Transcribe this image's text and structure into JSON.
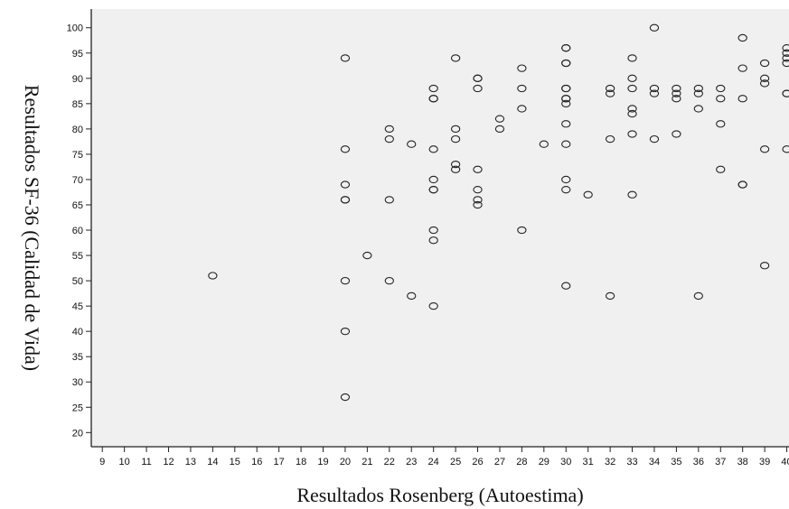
{
  "chart_data": {
    "type": "scatter",
    "xlabel": "Resultados Rosenberg (Autoestima)",
    "ylabel": "Resultados SF-36 (Calidad de Vida)",
    "xlim": [
      8.5,
      40.1
    ],
    "ylim": [
      17.2,
      103.7
    ],
    "xticks": [
      9,
      10,
      11,
      12,
      13,
      14,
      15,
      16,
      17,
      18,
      19,
      20,
      21,
      22,
      23,
      24,
      25,
      26,
      27,
      28,
      29,
      30,
      31,
      32,
      33,
      34,
      35,
      36,
      37,
      38,
      39,
      40
    ],
    "yticks": [
      20,
      25,
      30,
      35,
      40,
      45,
      50,
      55,
      60,
      65,
      70,
      75,
      80,
      85,
      90,
      95,
      100
    ],
    "grid": false,
    "legend": "none",
    "background_color": "#f0f0f0",
    "marker_color": "#222222",
    "points": [
      [
        14,
        51
      ],
      [
        20,
        94
      ],
      [
        20,
        76
      ],
      [
        20,
        69
      ],
      [
        20,
        66
      ],
      [
        20,
        66
      ],
      [
        20,
        50
      ],
      [
        20,
        40
      ],
      [
        20,
        27
      ],
      [
        21,
        55
      ],
      [
        22,
        80
      ],
      [
        22,
        78
      ],
      [
        22,
        66
      ],
      [
        22,
        50
      ],
      [
        23,
        77
      ],
      [
        23,
        47
      ],
      [
        24,
        88
      ],
      [
        24,
        86
      ],
      [
        24,
        86
      ],
      [
        24,
        76
      ],
      [
        24,
        70
      ],
      [
        24,
        68
      ],
      [
        24,
        68
      ],
      [
        24,
        60
      ],
      [
        24,
        58
      ],
      [
        24,
        45
      ],
      [
        25,
        94
      ],
      [
        25,
        80
      ],
      [
        25,
        78
      ],
      [
        25,
        73
      ],
      [
        25,
        72
      ],
      [
        26,
        90
      ],
      [
        26,
        90
      ],
      [
        26,
        88
      ],
      [
        26,
        72
      ],
      [
        26,
        68
      ],
      [
        26,
        66
      ],
      [
        26,
        65
      ],
      [
        27,
        82
      ],
      [
        27,
        80
      ],
      [
        28,
        92
      ],
      [
        28,
        88
      ],
      [
        28,
        84
      ],
      [
        28,
        60
      ],
      [
        29,
        77
      ],
      [
        30,
        96
      ],
      [
        30,
        96
      ],
      [
        30,
        93
      ],
      [
        30,
        93
      ],
      [
        30,
        88
      ],
      [
        30,
        88
      ],
      [
        30,
        86
      ],
      [
        30,
        86
      ],
      [
        30,
        85
      ],
      [
        30,
        81
      ],
      [
        30,
        77
      ],
      [
        30,
        70
      ],
      [
        30,
        68
      ],
      [
        30,
        49
      ],
      [
        31,
        67
      ],
      [
        32,
        88
      ],
      [
        32,
        87
      ],
      [
        32,
        78
      ],
      [
        32,
        47
      ],
      [
        33,
        94
      ],
      [
        33,
        90
      ],
      [
        33,
        88
      ],
      [
        33,
        84
      ],
      [
        33,
        83
      ],
      [
        33,
        79
      ],
      [
        33,
        67
      ],
      [
        34,
        100
      ],
      [
        34,
        88
      ],
      [
        34,
        87
      ],
      [
        34,
        78
      ],
      [
        35,
        88
      ],
      [
        35,
        87
      ],
      [
        35,
        86
      ],
      [
        35,
        79
      ],
      [
        36,
        88
      ],
      [
        36,
        87
      ],
      [
        36,
        84
      ],
      [
        36,
        47
      ],
      [
        37,
        88
      ],
      [
        37,
        86
      ],
      [
        37,
        81
      ],
      [
        37,
        72
      ],
      [
        38,
        98
      ],
      [
        38,
        92
      ],
      [
        38,
        86
      ],
      [
        38,
        69
      ],
      [
        38,
        69
      ],
      [
        39,
        93
      ],
      [
        39,
        90
      ],
      [
        39,
        89
      ],
      [
        39,
        76
      ],
      [
        39,
        53
      ],
      [
        40,
        96
      ],
      [
        40,
        95
      ],
      [
        40,
        94
      ],
      [
        40,
        93
      ],
      [
        40,
        87
      ],
      [
        40,
        87
      ],
      [
        40,
        76
      ]
    ]
  }
}
